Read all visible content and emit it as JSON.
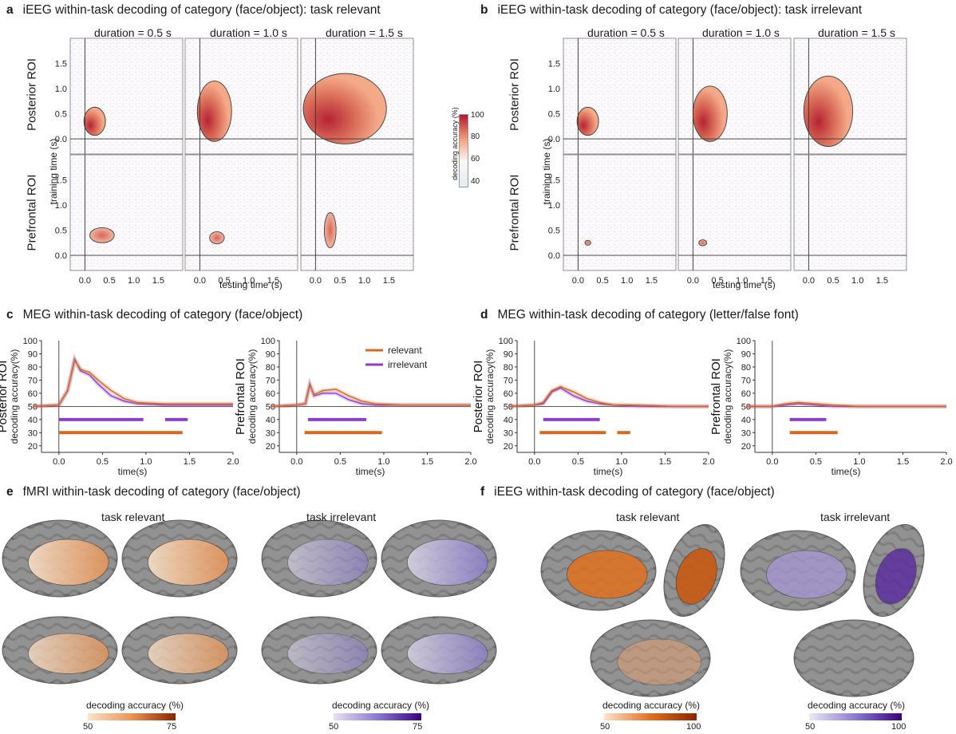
{
  "panels": {
    "a": {
      "letter": "a",
      "title": "iEEG within-task decoding of category (face/object): task relevant"
    },
    "b": {
      "letter": "b",
      "title": "iEEG within-task decoding of category (face/object): task irrelevant"
    },
    "c": {
      "letter": "c",
      "title": "MEG within-task decoding of category (face/object)"
    },
    "d": {
      "letter": "d",
      "title": "MEG within-task decoding of category (letter/false font)"
    },
    "e": {
      "letter": "e",
      "title": "fMRI within-task decoding of category (face/object)"
    },
    "f": {
      "letter": "f",
      "title": "iEEG within-task decoding of category (face/object)"
    }
  },
  "ieeg": {
    "durations": [
      "duration = 0.5 s",
      "duration = 1.0 s",
      "duration = 1.5 s"
    ],
    "rows": [
      "Posterior ROI",
      "Prefrontal ROI"
    ],
    "ylabel": "training time (s)",
    "xlabel": "testing time (s)",
    "x_ticks": [
      "0.0",
      "0.5",
      "1.0",
      "1.5"
    ],
    "y_ticks": [
      "0.0",
      "0.5",
      "1.0",
      "1.5"
    ],
    "colorbar": {
      "label": "decoding accuracy (%)",
      "ticks": [
        "100",
        "80",
        "60",
        "40"
      ],
      "low_color": "#e3ecf6",
      "high_color": "#b2182b"
    }
  },
  "meg": {
    "ylabel": "decoding accuracy(%)",
    "xlabel": "time(s)",
    "y_ticks": [
      "20",
      "30",
      "40",
      "50",
      "60",
      "70",
      "80",
      "90",
      "100"
    ],
    "x_ticks": [
      "0.0",
      "0.5",
      "1.0",
      "1.5",
      "2.0"
    ],
    "legend": [
      {
        "label": "relevant",
        "color": "#d2691e"
      },
      {
        "label": "irrelevant",
        "color": "#8a3fd1"
      }
    ],
    "plots": [
      {
        "roi": "Posterior ROI",
        "relevant": [
          [
            -0.3,
            50
          ],
          [
            0,
            51
          ],
          [
            0.1,
            62
          ],
          [
            0.18,
            85
          ],
          [
            0.25,
            78
          ],
          [
            0.35,
            76
          ],
          [
            0.45,
            70
          ],
          [
            0.6,
            62
          ],
          [
            0.75,
            56
          ],
          [
            0.9,
            53
          ],
          [
            1.2,
            52
          ],
          [
            1.6,
            52
          ],
          [
            2.0,
            52
          ]
        ],
        "irrelevant": [
          [
            -0.3,
            50
          ],
          [
            0,
            51
          ],
          [
            0.1,
            62
          ],
          [
            0.18,
            86
          ],
          [
            0.25,
            77
          ],
          [
            0.35,
            74
          ],
          [
            0.45,
            67
          ],
          [
            0.6,
            58
          ],
          [
            0.75,
            54
          ],
          [
            0.9,
            52
          ],
          [
            1.2,
            51
          ],
          [
            1.6,
            51
          ],
          [
            2.0,
            51
          ]
        ],
        "sig_irrelevant": [
          [
            0.0,
            0.97
          ],
          [
            1.22,
            1.48
          ]
        ],
        "sig_relevant": [
          [
            0.0,
            1.42
          ]
        ]
      },
      {
        "roi": "Prefrontal ROI",
        "relevant": [
          [
            -0.3,
            50
          ],
          [
            0,
            51
          ],
          [
            0.1,
            52
          ],
          [
            0.15,
            66
          ],
          [
            0.2,
            59
          ],
          [
            0.3,
            62
          ],
          [
            0.45,
            63
          ],
          [
            0.6,
            58
          ],
          [
            0.75,
            54
          ],
          [
            0.9,
            52
          ],
          [
            1.2,
            51
          ],
          [
            1.6,
            51
          ],
          [
            2.0,
            51
          ]
        ],
        "irrelevant": [
          [
            -0.3,
            50
          ],
          [
            0,
            51
          ],
          [
            0.1,
            52
          ],
          [
            0.15,
            67
          ],
          [
            0.2,
            58
          ],
          [
            0.3,
            60
          ],
          [
            0.45,
            60
          ],
          [
            0.6,
            55
          ],
          [
            0.75,
            52
          ],
          [
            0.9,
            51
          ],
          [
            1.2,
            51
          ],
          [
            1.6,
            51
          ],
          [
            2.0,
            51
          ]
        ],
        "sig_irrelevant": [
          [
            0.13,
            0.8
          ]
        ],
        "sig_relevant": [
          [
            0.09,
            0.98
          ]
        ]
      },
      {
        "roi": "Posterior ROI",
        "relevant": [
          [
            -0.3,
            50
          ],
          [
            0,
            51
          ],
          [
            0.1,
            53
          ],
          [
            0.2,
            62
          ],
          [
            0.3,
            65
          ],
          [
            0.45,
            61
          ],
          [
            0.6,
            56
          ],
          [
            0.75,
            53
          ],
          [
            0.9,
            51
          ],
          [
            1.2,
            51
          ],
          [
            1.6,
            50
          ],
          [
            2.0,
            50
          ]
        ],
        "irrelevant": [
          [
            -0.3,
            50
          ],
          [
            0,
            51
          ],
          [
            0.1,
            52
          ],
          [
            0.2,
            61
          ],
          [
            0.3,
            64
          ],
          [
            0.45,
            58
          ],
          [
            0.6,
            54
          ],
          [
            0.75,
            52
          ],
          [
            0.9,
            51
          ],
          [
            1.2,
            50
          ],
          [
            1.6,
            50
          ],
          [
            2.0,
            50
          ]
        ],
        "sig_irrelevant": [
          [
            0.1,
            0.75
          ]
        ],
        "sig_relevant": [
          [
            0.06,
            0.82
          ],
          [
            0.95,
            1.1
          ]
        ]
      },
      {
        "roi": "Prefrontal ROI",
        "relevant": [
          [
            -0.3,
            50
          ],
          [
            0,
            50
          ],
          [
            0.15,
            52
          ],
          [
            0.3,
            53
          ],
          [
            0.5,
            52
          ],
          [
            0.7,
            51
          ],
          [
            1.0,
            50
          ],
          [
            1.5,
            50
          ],
          [
            2.0,
            50
          ]
        ],
        "irrelevant": [
          [
            -0.3,
            50
          ],
          [
            0,
            50
          ],
          [
            0.15,
            51
          ],
          [
            0.3,
            52
          ],
          [
            0.5,
            51
          ],
          [
            0.7,
            50
          ],
          [
            1.0,
            50
          ],
          [
            1.5,
            50
          ],
          [
            2.0,
            50
          ]
        ],
        "sig_irrelevant": [
          [
            0.2,
            0.62
          ]
        ],
        "sig_relevant": [
          [
            0.2,
            0.75
          ]
        ]
      }
    ]
  },
  "fmri": {
    "conditions": [
      "task relevant",
      "task irrelevant"
    ],
    "colorbars": [
      {
        "label": "decoding accuracy (%)",
        "min": "50",
        "max": "75",
        "low_color": "#fde4cc",
        "high_color": "#8b2500"
      },
      {
        "label": "decoding accuracy (%)",
        "min": "50",
        "max": "75",
        "low_color": "#e6e0f3",
        "high_color": "#3a007d"
      }
    ]
  },
  "ieeg_brain": {
    "conditions": [
      "task relevant",
      "task irrelevant"
    ],
    "colorbars": [
      {
        "label": "decoding accuracy (%)",
        "min": "50",
        "max": "100",
        "low_color": "#fde4cc",
        "high_color": "#8b2500"
      },
      {
        "label": "decoding accuracy (%)",
        "min": "50",
        "max": "100",
        "low_color": "#ece8f5",
        "high_color": "#3a007d"
      }
    ]
  }
}
